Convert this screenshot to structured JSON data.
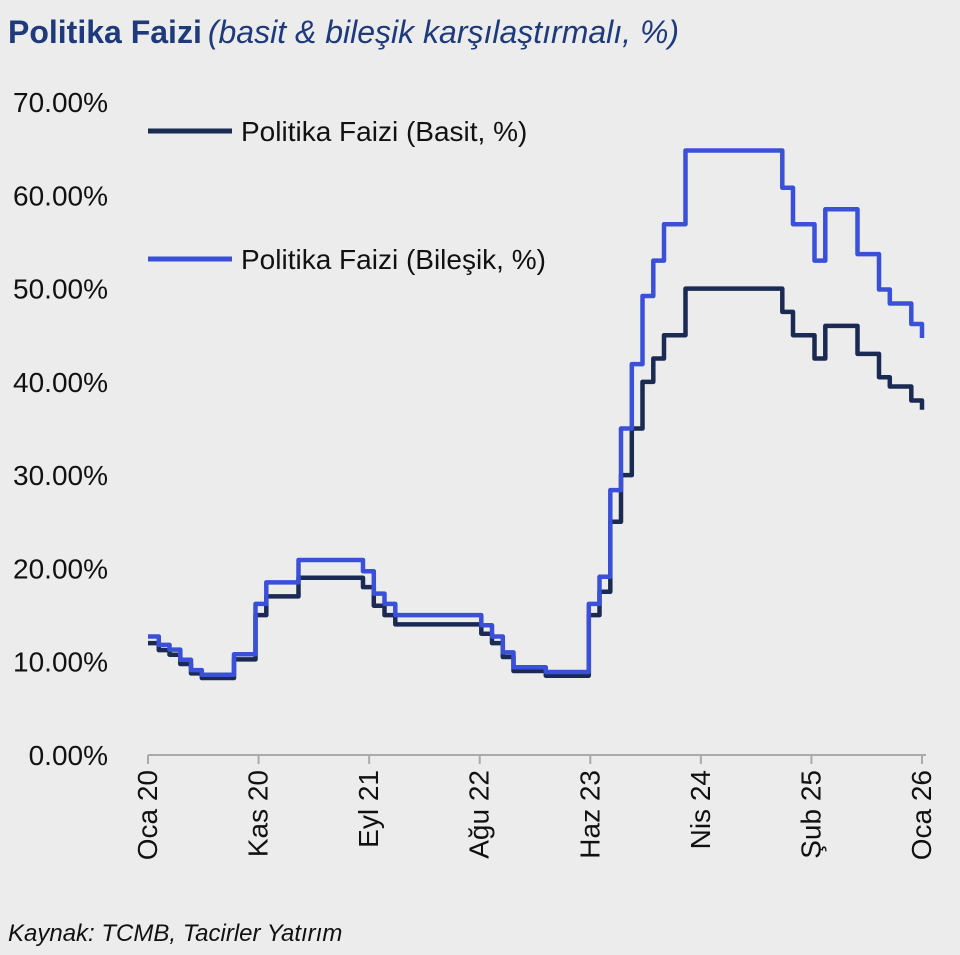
{
  "header": {
    "title": "Politika Faizi",
    "subtitle": "(basit & bileşik karşılaştırmalı, %)"
  },
  "footer": {
    "source": "Kaynak: TCMB, Tacirler Yatırım"
  },
  "chart_data": {
    "type": "line",
    "step": true,
    "title": "Politika Faizi",
    "subtitle": "(basit & bileşik karşılaştırmalı, %)",
    "x_tick_labels": [
      "Oca 20",
      "Kas 20",
      "Eyl 21",
      "Ağu 22",
      "Haz 23",
      "Nis 24",
      "Şub 25",
      "Oca 26"
    ],
    "y_tick_labels": [
      "0.00%",
      "10.00%",
      "20.00%",
      "30.00%",
      "40.00%",
      "50.00%",
      "60.00%",
      "70.00%"
    ],
    "ylim": [
      0,
      70
    ],
    "xlim": [
      "2020-01",
      "2026-01"
    ],
    "legend_position": "top-left",
    "grid": false,
    "colors": {
      "simple": "#1a2a52",
      "compound": "#3a50d8",
      "axis": "#aaaaaa",
      "text": "#111111",
      "title": "#1e3a7b"
    },
    "series": [
      {
        "name": "Politika Faizi (Basit, %)",
        "points": [
          [
            "2020-01",
            12.0
          ],
          [
            "2020-02",
            11.25
          ],
          [
            "2020-03",
            10.75
          ],
          [
            "2020-04",
            9.75
          ],
          [
            "2020-05",
            8.75
          ],
          [
            "2020-06",
            8.25
          ],
          [
            "2020-07",
            8.25
          ],
          [
            "2020-08",
            8.25
          ],
          [
            "2020-09",
            10.25
          ],
          [
            "2020-10",
            10.25
          ],
          [
            "2020-11",
            15.0
          ],
          [
            "2020-12",
            17.0
          ],
          [
            "2021-01",
            17.0
          ],
          [
            "2021-02",
            17.0
          ],
          [
            "2021-03",
            19.0
          ],
          [
            "2021-04",
            19.0
          ],
          [
            "2021-05",
            19.0
          ],
          [
            "2021-06",
            19.0
          ],
          [
            "2021-07",
            19.0
          ],
          [
            "2021-08",
            19.0
          ],
          [
            "2021-09",
            18.0
          ],
          [
            "2021-10",
            16.0
          ],
          [
            "2021-11",
            15.0
          ],
          [
            "2021-12",
            14.0
          ],
          [
            "2022-01",
            14.0
          ],
          [
            "2022-02",
            14.0
          ],
          [
            "2022-03",
            14.0
          ],
          [
            "2022-04",
            14.0
          ],
          [
            "2022-05",
            14.0
          ],
          [
            "2022-06",
            14.0
          ],
          [
            "2022-07",
            14.0
          ],
          [
            "2022-08",
            13.0
          ],
          [
            "2022-09",
            12.0
          ],
          [
            "2022-10",
            10.5
          ],
          [
            "2022-11",
            9.0
          ],
          [
            "2022-12",
            9.0
          ],
          [
            "2023-01",
            9.0
          ],
          [
            "2023-02",
            8.5
          ],
          [
            "2023-03",
            8.5
          ],
          [
            "2023-04",
            8.5
          ],
          [
            "2023-05",
            8.5
          ],
          [
            "2023-06",
            15.0
          ],
          [
            "2023-07",
            17.5
          ],
          [
            "2023-08",
            25.0
          ],
          [
            "2023-09",
            30.0
          ],
          [
            "2023-10",
            35.0
          ],
          [
            "2023-11",
            40.0
          ],
          [
            "2023-12",
            42.5
          ],
          [
            "2024-01",
            45.0
          ],
          [
            "2024-02",
            45.0
          ],
          [
            "2024-03",
            50.0
          ],
          [
            "2024-04",
            50.0
          ],
          [
            "2024-05",
            50.0
          ],
          [
            "2024-06",
            50.0
          ],
          [
            "2024-07",
            50.0
          ],
          [
            "2024-08",
            50.0
          ],
          [
            "2024-09",
            50.0
          ],
          [
            "2024-10",
            50.0
          ],
          [
            "2024-11",
            50.0
          ],
          [
            "2024-12",
            47.5
          ],
          [
            "2025-01",
            45.0
          ],
          [
            "2025-02",
            45.0
          ],
          [
            "2025-03",
            42.5
          ],
          [
            "2025-04",
            46.0
          ],
          [
            "2025-05",
            46.0
          ],
          [
            "2025-06",
            46.0
          ],
          [
            "2025-07",
            43.0
          ],
          [
            "2025-08",
            43.0
          ],
          [
            "2025-09",
            40.5
          ],
          [
            "2025-10",
            39.5
          ],
          [
            "2025-11",
            39.5
          ],
          [
            "2025-12",
            38.0
          ],
          [
            "2026-01",
            37.0
          ]
        ]
      },
      {
        "name": "Politika Faizi (Bileşik, %)",
        "points": [
          [
            "2020-01",
            12.7
          ],
          [
            "2020-02",
            11.8
          ],
          [
            "2020-03",
            11.3
          ],
          [
            "2020-04",
            10.2
          ],
          [
            "2020-05",
            9.1
          ],
          [
            "2020-06",
            8.6
          ],
          [
            "2020-07",
            8.6
          ],
          [
            "2020-08",
            8.6
          ],
          [
            "2020-09",
            10.8
          ],
          [
            "2020-10",
            10.8
          ],
          [
            "2020-11",
            16.2
          ],
          [
            "2020-12",
            18.5
          ],
          [
            "2021-01",
            18.5
          ],
          [
            "2021-02",
            18.5
          ],
          [
            "2021-03",
            20.9
          ],
          [
            "2021-04",
            20.9
          ],
          [
            "2021-05",
            20.9
          ],
          [
            "2021-06",
            20.9
          ],
          [
            "2021-07",
            20.9
          ],
          [
            "2021-08",
            20.9
          ],
          [
            "2021-09",
            19.7
          ],
          [
            "2021-10",
            17.3
          ],
          [
            "2021-11",
            16.2
          ],
          [
            "2021-12",
            15.0
          ],
          [
            "2022-01",
            15.0
          ],
          [
            "2022-02",
            15.0
          ],
          [
            "2022-03",
            15.0
          ],
          [
            "2022-04",
            15.0
          ],
          [
            "2022-05",
            15.0
          ],
          [
            "2022-06",
            15.0
          ],
          [
            "2022-07",
            15.0
          ],
          [
            "2022-08",
            13.9
          ],
          [
            "2022-09",
            12.7
          ],
          [
            "2022-10",
            11.0
          ],
          [
            "2022-11",
            9.4
          ],
          [
            "2022-12",
            9.4
          ],
          [
            "2023-01",
            9.4
          ],
          [
            "2023-02",
            8.9
          ],
          [
            "2023-03",
            8.9
          ],
          [
            "2023-04",
            8.9
          ],
          [
            "2023-05",
            8.9
          ],
          [
            "2023-06",
            16.2
          ],
          [
            "2023-07",
            19.1
          ],
          [
            "2023-08",
            28.4
          ],
          [
            "2023-09",
            35.0
          ],
          [
            "2023-10",
            41.9
          ],
          [
            "2023-11",
            49.2
          ],
          [
            "2023-12",
            53.0
          ],
          [
            "2024-01",
            56.9
          ],
          [
            "2024-02",
            56.9
          ],
          [
            "2024-03",
            64.8
          ],
          [
            "2024-04",
            64.8
          ],
          [
            "2024-05",
            64.8
          ],
          [
            "2024-06",
            64.8
          ],
          [
            "2024-07",
            64.8
          ],
          [
            "2024-08",
            64.8
          ],
          [
            "2024-09",
            64.8
          ],
          [
            "2024-10",
            64.8
          ],
          [
            "2024-11",
            64.8
          ],
          [
            "2024-12",
            60.8
          ],
          [
            "2025-01",
            56.9
          ],
          [
            "2025-02",
            56.9
          ],
          [
            "2025-03",
            53.0
          ],
          [
            "2025-04",
            58.5
          ],
          [
            "2025-05",
            58.5
          ],
          [
            "2025-06",
            58.5
          ],
          [
            "2025-07",
            53.7
          ],
          [
            "2025-08",
            53.7
          ],
          [
            "2025-09",
            49.9
          ],
          [
            "2025-10",
            48.4
          ],
          [
            "2025-11",
            48.4
          ],
          [
            "2025-12",
            46.2
          ],
          [
            "2026-01",
            44.7
          ]
        ]
      }
    ]
  }
}
